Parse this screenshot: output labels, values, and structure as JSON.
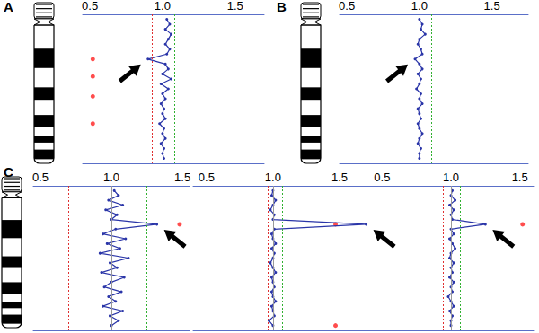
{
  "chart_data": [
    {
      "type": "line",
      "title": "A",
      "xlim": [
        0.45,
        1.7
      ],
      "xticks": [
        0.5,
        {
          "value": 1,
          "label": "1.0"
        },
        1.5
      ],
      "ylim": [
        0,
        60
      ],
      "tick_labels": "x",
      "reference_lines": [
        {
          "value": 0.93,
          "color": "#e03030",
          "line_style": "dotted"
        },
        {
          "value": 1.0,
          "color": "#999999",
          "line_style": "solid"
        },
        {
          "value": 1.08,
          "color": "#30b030",
          "line_style": "dotted"
        }
      ],
      "series": [
        {
          "type": "line",
          "color": "#2a35a8",
          "marker": "circle",
          "x": [
            1.03,
            1.05,
            1.02,
            1.06,
            1.04,
            1.02,
            1.05,
            1.03,
            0.9,
            1.02,
            1.04,
            1.0,
            1.06,
            0.99,
            1.04,
            1.0,
            1.02,
            0.99,
            1.01,
            1.0,
            1.02,
            0.98,
            1.01,
            1.0,
            1.02,
            0.99,
            1.01,
            1.0,
            1.01
          ],
          "y": [
            2,
            4,
            6,
            8,
            10,
            12,
            14,
            16,
            18,
            20,
            22,
            24,
            26,
            28,
            30,
            32,
            34,
            36,
            38,
            40,
            42,
            44,
            46,
            48,
            50,
            52,
            54,
            56,
            58
          ]
        },
        {
          "type": "scatter",
          "color": "#ff2020",
          "marker": "circle",
          "x": [
            0.52,
            0.52,
            0.52,
            0.52
          ],
          "y": [
            18,
            25,
            33,
            44
          ]
        }
      ],
      "arrow": {
        "x": 0.9,
        "y": 18
      }
    },
    {
      "type": "line",
      "title": "B",
      "xlim": [
        0.45,
        1.75
      ],
      "xticks": [
        0.5,
        {
          "value": 1,
          "label": "1.0"
        },
        1.5
      ],
      "ylim": [
        0,
        60
      ],
      "tick_labels": "x",
      "reference_lines": [
        {
          "value": 0.94,
          "color": "#e03030",
          "line_style": "dotted"
        },
        {
          "value": 1.0,
          "color": "#999999",
          "line_style": "solid"
        },
        {
          "value": 1.08,
          "color": "#30b030",
          "line_style": "dotted"
        }
      ],
      "series": [
        {
          "type": "line",
          "color": "#2a35a8",
          "marker": "circle",
          "x": [
            1.0,
            1.02,
            1.01,
            1.04,
            1.0,
            0.99,
            1.01,
            1.02,
            0.97,
            1.0,
            1.02,
            0.99,
            1.01,
            1.0,
            0.98,
            1.01,
            1.0,
            1.02,
            0.99,
            1.0,
            1.01,
            0.99,
            1.0,
            1.02,
            1.0,
            0.99,
            1.01,
            1.0,
            1.0
          ],
          "y": [
            2,
            4,
            6,
            8,
            10,
            12,
            14,
            16,
            18,
            20,
            22,
            24,
            26,
            28,
            30,
            32,
            34,
            36,
            38,
            40,
            42,
            44,
            46,
            48,
            50,
            52,
            54,
            56,
            58
          ]
        }
      ],
      "arrow": {
        "x": 0.97,
        "y": 18
      }
    },
    {
      "type": "line",
      "title": "C",
      "xlim": [
        0.45,
        1.55
      ],
      "xticks": [
        0.5,
        {
          "value": 1,
          "label": "1.0"
        },
        1.5
      ],
      "ylim": [
        0,
        60
      ],
      "tick_labels": "x",
      "reference_lines": [
        {
          "value": 0.7,
          "color": "#e03030",
          "line_style": "dotted"
        },
        {
          "value": 1.0,
          "color": "#999999",
          "line_style": "solid"
        },
        {
          "value": 1.25,
          "color": "#30b030",
          "line_style": "dotted"
        }
      ],
      "series": [
        {
          "type": "line",
          "color": "#2a35a8",
          "marker": "circle",
          "x": [
            1.02,
            1.05,
            0.98,
            1.08,
            0.96,
            1.04,
            1.0,
            1.32,
            1.03,
            0.94,
            1.1,
            0.97,
            1.06,
            0.92,
            1.12,
            0.99,
            1.04,
            0.93,
            1.09,
            1.0,
            0.95,
            1.07,
            0.98,
            1.03,
            0.94,
            1.08,
            0.99,
            1.05,
            1.0
          ],
          "y": [
            2,
            4,
            6,
            8,
            10,
            12,
            14,
            16,
            18,
            20,
            22,
            24,
            26,
            28,
            30,
            32,
            34,
            36,
            38,
            40,
            42,
            44,
            46,
            48,
            50,
            52,
            54,
            56,
            58
          ]
        },
        {
          "type": "scatter",
          "color": "#ff2020",
          "marker": "circle",
          "x": [
            1.48
          ],
          "y": [
            16
          ]
        }
      ],
      "arrow": {
        "x": 1.32,
        "y": 16
      }
    },
    {
      "type": "line",
      "xlim": [
        0.4,
        1.75
      ],
      "xticks": [
        0.5,
        {
          "value": 1,
          "label": "1.0"
        },
        1.5
      ],
      "ylim": [
        0,
        60
      ],
      "tick_labels": "x",
      "reference_lines": [
        {
          "value": 0.96,
          "color": "#e03030",
          "line_style": "dotted"
        },
        {
          "value": 1.0,
          "color": "#999999",
          "line_style": "solid"
        },
        {
          "value": 1.07,
          "color": "#30b030",
          "line_style": "dotted"
        }
      ],
      "series": [
        {
          "type": "line",
          "color": "#2a35a8",
          "marker": "circle",
          "x": [
            1.0,
            0.99,
            1.02,
            1.0,
            0.98,
            1.01,
            1.0,
            1.7,
            1.01,
            0.99,
            1.0,
            1.02,
            0.99,
            1.01,
            1.0,
            0.98,
            1.0,
            1.02,
            0.99,
            1.0,
            1.01,
            0.99,
            1.0,
            1.02,
            0.99,
            1.0,
            1.01,
            0.97,
            1.0
          ],
          "y": [
            2,
            4,
            6,
            8,
            10,
            12,
            14,
            16,
            18,
            20,
            22,
            24,
            26,
            28,
            30,
            32,
            34,
            36,
            38,
            40,
            42,
            44,
            46,
            48,
            50,
            52,
            54,
            56,
            58
          ]
        },
        {
          "type": "scatter",
          "color": "#ff2020",
          "marker": "circle",
          "x": [
            1.47,
            1.47
          ],
          "y": [
            16,
            58
          ]
        }
      ],
      "arrow": {
        "x": 1.7,
        "y": 16
      }
    },
    {
      "type": "line",
      "xlim": [
        0.4,
        1.6
      ],
      "xticks": [
        0.5,
        {
          "value": 1,
          "label": "1.0"
        },
        1.5
      ],
      "ylim": [
        0,
        60
      ],
      "tick_labels": "x",
      "reference_lines": [
        {
          "value": 0.94,
          "color": "#e03030",
          "line_style": "dotted"
        },
        {
          "value": 1.0,
          "color": "#999999",
          "line_style": "solid"
        },
        {
          "value": 1.07,
          "color": "#30b030",
          "line_style": "dotted"
        }
      ],
      "series": [
        {
          "type": "line",
          "color": "#2a35a8",
          "marker": "circle",
          "x": [
            1.01,
            1.0,
            1.03,
            0.99,
            1.02,
            1.0,
            1.01,
            1.25,
            1.0,
            1.02,
            0.99,
            1.01,
            1.03,
            1.0,
            0.99,
            1.02,
            1.0,
            1.01,
            0.99,
            1.02,
            1.0,
            1.01,
            0.98,
            1.0,
            1.02,
            0.99,
            1.01,
            1.0,
            1.0
          ],
          "y": [
            2,
            4,
            6,
            8,
            10,
            12,
            14,
            16,
            18,
            20,
            22,
            24,
            26,
            28,
            30,
            32,
            34,
            36,
            38,
            40,
            42,
            44,
            46,
            48,
            50,
            52,
            54,
            56,
            58
          ]
        },
        {
          "type": "scatter",
          "color": "#ff2020",
          "marker": "circle",
          "x": [
            1.52
          ],
          "y": [
            16
          ]
        }
      ],
      "arrow": {
        "x": 1.25,
        "y": 16
      }
    }
  ]
}
